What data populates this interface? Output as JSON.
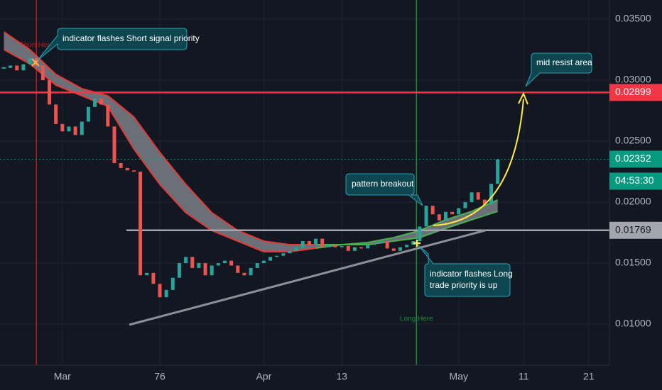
{
  "chart_data": {
    "type": "candlestick",
    "x": [
      52,
      53,
      54,
      55,
      56,
      57,
      58,
      59,
      60,
      61,
      62,
      63,
      64,
      65,
      66,
      67,
      68,
      69,
      70,
      71,
      72,
      73,
      74,
      75,
      76,
      77,
      78,
      79,
      80,
      81,
      82,
      83,
      84,
      85,
      86,
      87,
      88,
      89,
      90,
      91,
      92,
      93,
      94,
      95,
      96,
      97,
      98,
      99,
      100,
      101,
      102,
      103,
      104,
      105,
      106,
      107,
      108,
      109,
      110,
      111,
      112,
      113,
      114,
      115,
      116,
      117,
      118,
      119,
      120,
      121,
      122,
      123,
      124,
      125,
      126,
      127,
      128
    ],
    "values": [
      0.031,
      0.0312,
      0.0308,
      0.0313,
      0.0318,
      0.0312,
      0.03,
      0.028,
      0.0264,
      0.0258,
      0.0262,
      0.0255,
      0.0266,
      0.0278,
      0.0285,
      0.028,
      0.0262,
      0.0232,
      0.0228,
      0.0226,
      0.0225,
      0.014,
      0.0142,
      0.0133,
      0.0122,
      0.0128,
      0.0138,
      0.015,
      0.0155,
      0.0146,
      0.015,
      0.014,
      0.0148,
      0.015,
      0.0152,
      0.0148,
      0.0142,
      0.014,
      0.0146,
      0.015,
      0.0152,
      0.0155,
      0.0156,
      0.0158,
      0.016,
      0.0163,
      0.0168,
      0.0165,
      0.017,
      0.0163,
      0.0165,
      0.0163,
      0.0164,
      0.016,
      0.0163,
      0.0162,
      0.0165,
      0.0166,
      0.0168,
      0.0162,
      0.016,
      0.0163,
      0.0165,
      0.0168,
      0.018,
      0.0197,
      0.019,
      0.0185,
      0.0192,
      0.019,
      0.0195,
      0.02,
      0.0208,
      0.0202,
      0.0198,
      0.0215,
      0.0235
    ],
    "up_color": "#26a69a",
    "down_color": "#ef5350",
    "ribbon": {
      "x": [
        52,
        56,
        60,
        64,
        68,
        72,
        76,
        80,
        84,
        88,
        92,
        96,
        100,
        104,
        108,
        112,
        116,
        120,
        124,
        128
      ],
      "fast": [
        0.0325,
        0.03134,
        0.02959,
        0.02872,
        0.02785,
        0.02436,
        0.02145,
        0.01913,
        0.01767,
        0.0168,
        0.01593,
        0.01593,
        0.01622,
        0.01651,
        0.01669,
        0.01709,
        0.01767,
        0.01855,
        0.01924,
        0.02017
      ],
      "slow": [
        0.03395,
        0.0325,
        0.03047,
        0.0293,
        0.02872,
        0.02698,
        0.02407,
        0.02145,
        0.01913,
        0.01767,
        0.0168,
        0.01651,
        0.01651,
        0.01651,
        0.01651,
        0.0168,
        0.01709,
        0.01785,
        0.01855,
        0.01924
      ],
      "fill": "#8a8d96",
      "bull_color": "#4caf50",
      "bear_color": "#e53935"
    },
    "xlim": [
      51.4,
      145.2
    ],
    "ylim": [
      0.00663,
      0.03657
    ],
    "xticks": [
      {
        "value": 61,
        "label": "Mar"
      },
      76,
      {
        "value": 92,
        "label": "Apr"
      },
      {
        "value": 104,
        "label": "13"
      },
      {
        "value": 122,
        "label": "May"
      },
      {
        "value": 132,
        "label": "11"
      },
      {
        "value": 142,
        "label": "21"
      }
    ],
    "yticks": [
      {
        "value": 0.01,
        "label": "0.01000"
      },
      {
        "value": 0.015,
        "label": "0.01500"
      },
      {
        "value": 0.02,
        "label": "0.02000"
      },
      {
        "value": 0.025,
        "label": "0.02500"
      },
      {
        "value": 0.03,
        "label": "0.03000"
      },
      {
        "value": 0.035,
        "label": "0.03500"
      }
    ],
    "grid": true,
    "price_lines": [
      {
        "value": 0.02899,
        "color": "#f23645",
        "text_color": "#ffffff"
      },
      {
        "value": 0.02352,
        "color": "#089981",
        "text_color": "#ffffff",
        "countdown": "04:53:30"
      },
      {
        "value": 0.01769,
        "color": "#a3a6af",
        "text_color": "#131722"
      }
    ],
    "vlines": [
      {
        "x": 57,
        "label": "Short Here",
        "color": "#b71c1c"
      },
      {
        "x": 115.5,
        "label": "Long Here",
        "color": "#1b8a3a"
      }
    ],
    "annotations": [
      {
        "lines": [
          "indicator flashes Short signal priority"
        ]
      },
      {
        "lines": [
          "mid resist area"
        ]
      },
      {
        "lines": [
          "pattern breakout"
        ]
      },
      {
        "lines": [
          "indicator flashes Long",
          "trade priority is up"
        ]
      }
    ]
  }
}
